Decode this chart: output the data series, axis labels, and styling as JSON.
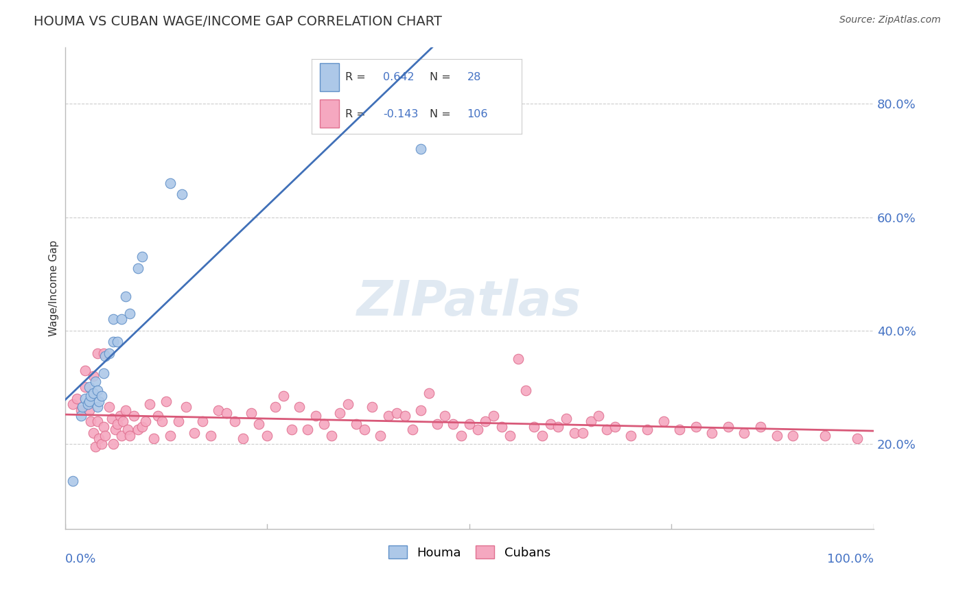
{
  "title": "HOUMA VS CUBAN WAGE/INCOME GAP CORRELATION CHART",
  "source": "Source: ZipAtlas.com",
  "ylabel": "Wage/Income Gap",
  "houma_R": 0.642,
  "houma_N": 28,
  "cuban_R": -0.143,
  "cuban_N": 106,
  "houma_color": "#adc8e8",
  "cuban_color": "#f5a8c0",
  "houma_edge_color": "#6090c8",
  "cuban_edge_color": "#e07090",
  "houma_line_color": "#4070b8",
  "cuban_line_color": "#d85878",
  "background_color": "#ffffff",
  "grid_color": "#cccccc",
  "text_color_dark": "#333333",
  "text_color_blue": "#4472c4",
  "houma_x": [
    0.01,
    0.02,
    0.022,
    0.025,
    0.028,
    0.03,
    0.03,
    0.032,
    0.035,
    0.038,
    0.04,
    0.04,
    0.042,
    0.045,
    0.048,
    0.05,
    0.055,
    0.06,
    0.06,
    0.065,
    0.07,
    0.075,
    0.08,
    0.09,
    0.095,
    0.13,
    0.145,
    0.44
  ],
  "houma_y": [
    0.135,
    0.25,
    0.265,
    0.28,
    0.27,
    0.275,
    0.3,
    0.285,
    0.29,
    0.31,
    0.265,
    0.295,
    0.275,
    0.285,
    0.325,
    0.355,
    0.36,
    0.38,
    0.42,
    0.38,
    0.42,
    0.46,
    0.43,
    0.51,
    0.53,
    0.66,
    0.64,
    0.72
  ],
  "cuban_x": [
    0.01,
    0.015,
    0.02,
    0.025,
    0.03,
    0.032,
    0.035,
    0.038,
    0.04,
    0.042,
    0.045,
    0.048,
    0.05,
    0.055,
    0.058,
    0.06,
    0.062,
    0.065,
    0.068,
    0.07,
    0.072,
    0.075,
    0.078,
    0.08,
    0.085,
    0.09,
    0.095,
    0.1,
    0.105,
    0.11,
    0.115,
    0.12,
    0.125,
    0.13,
    0.14,
    0.15,
    0.16,
    0.17,
    0.18,
    0.19,
    0.2,
    0.21,
    0.22,
    0.23,
    0.24,
    0.25,
    0.26,
    0.27,
    0.28,
    0.29,
    0.3,
    0.31,
    0.32,
    0.33,
    0.34,
    0.35,
    0.36,
    0.37,
    0.38,
    0.39,
    0.4,
    0.41,
    0.42,
    0.43,
    0.44,
    0.45,
    0.46,
    0.47,
    0.48,
    0.49,
    0.5,
    0.51,
    0.52,
    0.53,
    0.54,
    0.55,
    0.56,
    0.57,
    0.58,
    0.59,
    0.6,
    0.61,
    0.62,
    0.63,
    0.64,
    0.65,
    0.66,
    0.67,
    0.68,
    0.7,
    0.72,
    0.74,
    0.76,
    0.78,
    0.8,
    0.82,
    0.84,
    0.86,
    0.88,
    0.9,
    0.94,
    0.98,
    0.025,
    0.035,
    0.04,
    0.048
  ],
  "cuban_y": [
    0.27,
    0.28,
    0.26,
    0.3,
    0.26,
    0.24,
    0.22,
    0.195,
    0.24,
    0.21,
    0.2,
    0.23,
    0.215,
    0.265,
    0.245,
    0.2,
    0.225,
    0.235,
    0.25,
    0.215,
    0.24,
    0.26,
    0.225,
    0.215,
    0.25,
    0.225,
    0.23,
    0.24,
    0.27,
    0.21,
    0.25,
    0.24,
    0.275,
    0.215,
    0.24,
    0.265,
    0.22,
    0.24,
    0.215,
    0.26,
    0.255,
    0.24,
    0.21,
    0.255,
    0.235,
    0.215,
    0.265,
    0.285,
    0.225,
    0.265,
    0.225,
    0.25,
    0.235,
    0.215,
    0.255,
    0.27,
    0.235,
    0.225,
    0.265,
    0.215,
    0.25,
    0.255,
    0.25,
    0.225,
    0.26,
    0.29,
    0.235,
    0.25,
    0.235,
    0.215,
    0.235,
    0.225,
    0.24,
    0.25,
    0.23,
    0.215,
    0.35,
    0.295,
    0.23,
    0.215,
    0.235,
    0.23,
    0.245,
    0.22,
    0.22,
    0.24,
    0.25,
    0.225,
    0.23,
    0.215,
    0.225,
    0.24,
    0.225,
    0.23,
    0.22,
    0.23,
    0.22,
    0.23,
    0.215,
    0.215,
    0.215,
    0.21,
    0.33,
    0.32,
    0.36,
    0.36
  ],
  "xlim": [
    0.0,
    1.0
  ],
  "ylim": [
    0.05,
    0.9
  ],
  "yticks": [
    0.2,
    0.4,
    0.6,
    0.8
  ],
  "ytick_labels": [
    "20.0%",
    "40.0%",
    "60.0%",
    "80.0%"
  ]
}
